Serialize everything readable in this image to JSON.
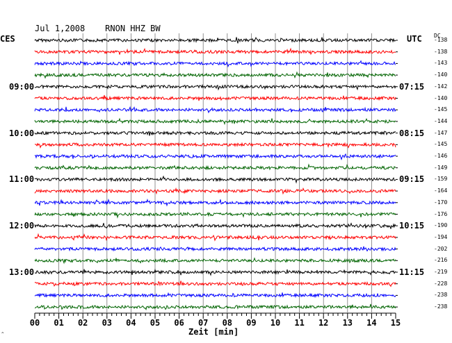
{
  "header": {
    "title": "Jul 1,2008    RNON HHZ BW",
    "left_timezone": "CES",
    "right_timezone": "UTC",
    "dc_label": "DC"
  },
  "chart_data": {
    "type": "line",
    "title": "Jul 1,2008    RNON HHZ BW",
    "xlabel": "Zeit [min]",
    "x_ticks": [
      "00",
      "01",
      "02",
      "03",
      "04",
      "05",
      "06",
      "07",
      "08",
      "09",
      "10",
      "11",
      "12",
      "13",
      "14",
      "15"
    ],
    "xlim": [
      0,
      15
    ],
    "grid": true,
    "trace_colors": [
      "#000000",
      "#ff0000",
      "#0000ff",
      "#006400"
    ],
    "left_time_labels": [
      "09:00",
      "10:00",
      "11:00",
      "12:00",
      "13:00"
    ],
    "right_time_labels": [
      "07:15",
      "08:15",
      "09:15",
      "10:15",
      "11:15"
    ],
    "time_label_rows": [
      4,
      8,
      12,
      16,
      20
    ],
    "dc_values": [
      "-138",
      "-138",
      "-143",
      "-140",
      "-142",
      "-140",
      "-145",
      "-144",
      "-147",
      "-145",
      "-146",
      "-149",
      "-159",
      "-164",
      "-170",
      "-176",
      "-190",
      "-194",
      "-202",
      "-216",
      "-219",
      "-228",
      "-238",
      "-238"
    ]
  },
  "footer": {
    "corner_mark": "^"
  }
}
